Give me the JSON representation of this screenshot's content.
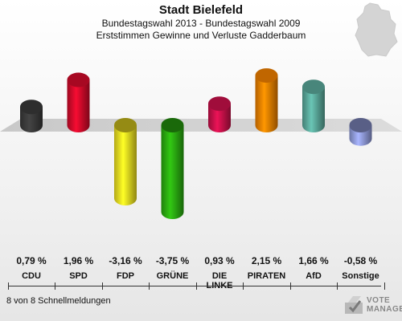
{
  "header": {
    "title": "Stadt Bielefeld",
    "subtitle1": "Bundestagswahl 2013 - Bundestagswahl 2009",
    "subtitle2": "Erststimmen Gewinne und Verluste Gadderbaum"
  },
  "footer": {
    "note": "8 von 8 Schnellmeldungen"
  },
  "brand": {
    "line1": "VOTE",
    "line2": "MANAGER"
  },
  "icons": {
    "map": "germany-map-icon",
    "brand": "votemanager-logo-icon"
  },
  "chart_data": {
    "type": "bar",
    "categories": [
      "CDU",
      "SPD",
      "FDP",
      "GRÜNE",
      "DIE LINKE",
      "PIRATEN",
      "AfD",
      "Sonstige"
    ],
    "category_lines": [
      [
        "CDU"
      ],
      [
        "SPD"
      ],
      [
        "FDP"
      ],
      [
        "GRÜNE"
      ],
      [
        "DIE",
        "LINKE"
      ],
      [
        "PIRATEN"
      ],
      [
        "AfD"
      ],
      [
        "Sonstige"
      ]
    ],
    "values": [
      0.79,
      1.96,
      -3.16,
      -3.75,
      0.93,
      2.15,
      1.66,
      -0.58
    ],
    "value_labels": [
      "0,79 %",
      "1,96 %",
      "-3,16 %",
      "-3,75 %",
      "0,93 %",
      "2,15 %",
      "1,66 %",
      "-0,58 %"
    ],
    "colors": [
      "#3a3a3a",
      "#d10a2a",
      "#f0e020",
      "#2aaa10",
      "#c8104a",
      "#f08000",
      "#5aa89a",
      "#8f9ad8"
    ],
    "ylim": [
      -3.75,
      2.15
    ]
  }
}
